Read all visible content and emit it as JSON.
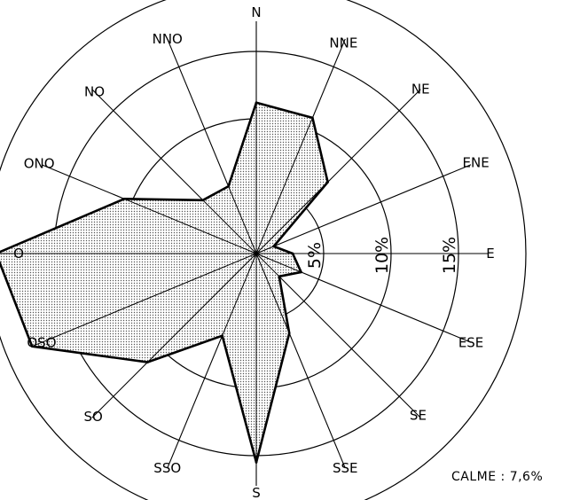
{
  "chart_data": {
    "type": "radar",
    "directions": [
      "N",
      "NNE",
      "NE",
      "ENE",
      "E",
      "ESE",
      "SE",
      "SSE",
      "S",
      "SSO",
      "SO",
      "OSO",
      "O",
      "ONO",
      "NO",
      "NNO"
    ],
    "values": [
      11.2,
      10.9,
      7.5,
      1.4,
      2.7,
      3.6,
      2.4,
      6.4,
      15.5,
      6.6,
      11.4,
      18.0,
      19.3,
      10.6,
      5.6,
      5.4
    ],
    "unit": "%",
    "rings": [
      {
        "value": 5,
        "label": "5%"
      },
      {
        "value": 10,
        "label": "10%"
      },
      {
        "value": 15,
        "label": "15%"
      },
      {
        "value": 20,
        "label": ""
      }
    ],
    "calm": {
      "label": "CALME :",
      "value": "7,6%"
    },
    "colors": {
      "fill_pattern": "#555555",
      "outline": "#000000"
    }
  }
}
